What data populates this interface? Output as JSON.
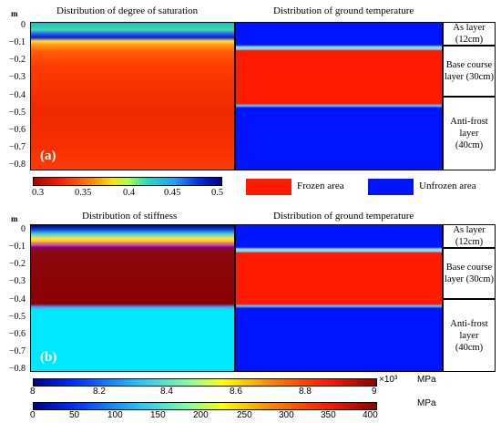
{
  "panel_a": {
    "label": "(a)",
    "left_title": "Distribution of degree of saturation",
    "right_title": "Distribution of ground temperature",
    "colorbar_ticks": [
      "0.3",
      "0.35",
      "0.4",
      "0.45",
      "0.5"
    ],
    "legend": {
      "frozen": "Frozen area",
      "unfrozen": "Unfrozen area",
      "frozen_color": "#ff1a00",
      "unfrozen_color": "#0014ff"
    }
  },
  "panel_b": {
    "label": "(b)",
    "left_title": "Distribution of stiffness",
    "right_title": "Distribution of ground temperature",
    "colorbar1_ticks": [
      "8",
      "8.2",
      "8.4",
      "8.6",
      "8.8",
      "9"
    ],
    "colorbar1_multiplier": "×10³",
    "colorbar1_unit": "MPa",
    "colorbar2_ticks": [
      "0",
      "50",
      "100",
      "150",
      "200",
      "250",
      "300",
      "350",
      "400"
    ],
    "colorbar2_unit": "MPa"
  },
  "axis": {
    "unit": "m",
    "ticks": [
      "0",
      "−0.1",
      "−0.2",
      "−0.3",
      "−0.4",
      "−0.5",
      "−0.6",
      "−0.7",
      "−0.8"
    ]
  },
  "layers": [
    {
      "name": "As layer\n(12cm)"
    },
    {
      "name": "Base course\nlayer (30cm)"
    },
    {
      "name": "Anti-frost\nlayer\n(40cm)"
    }
  ]
}
